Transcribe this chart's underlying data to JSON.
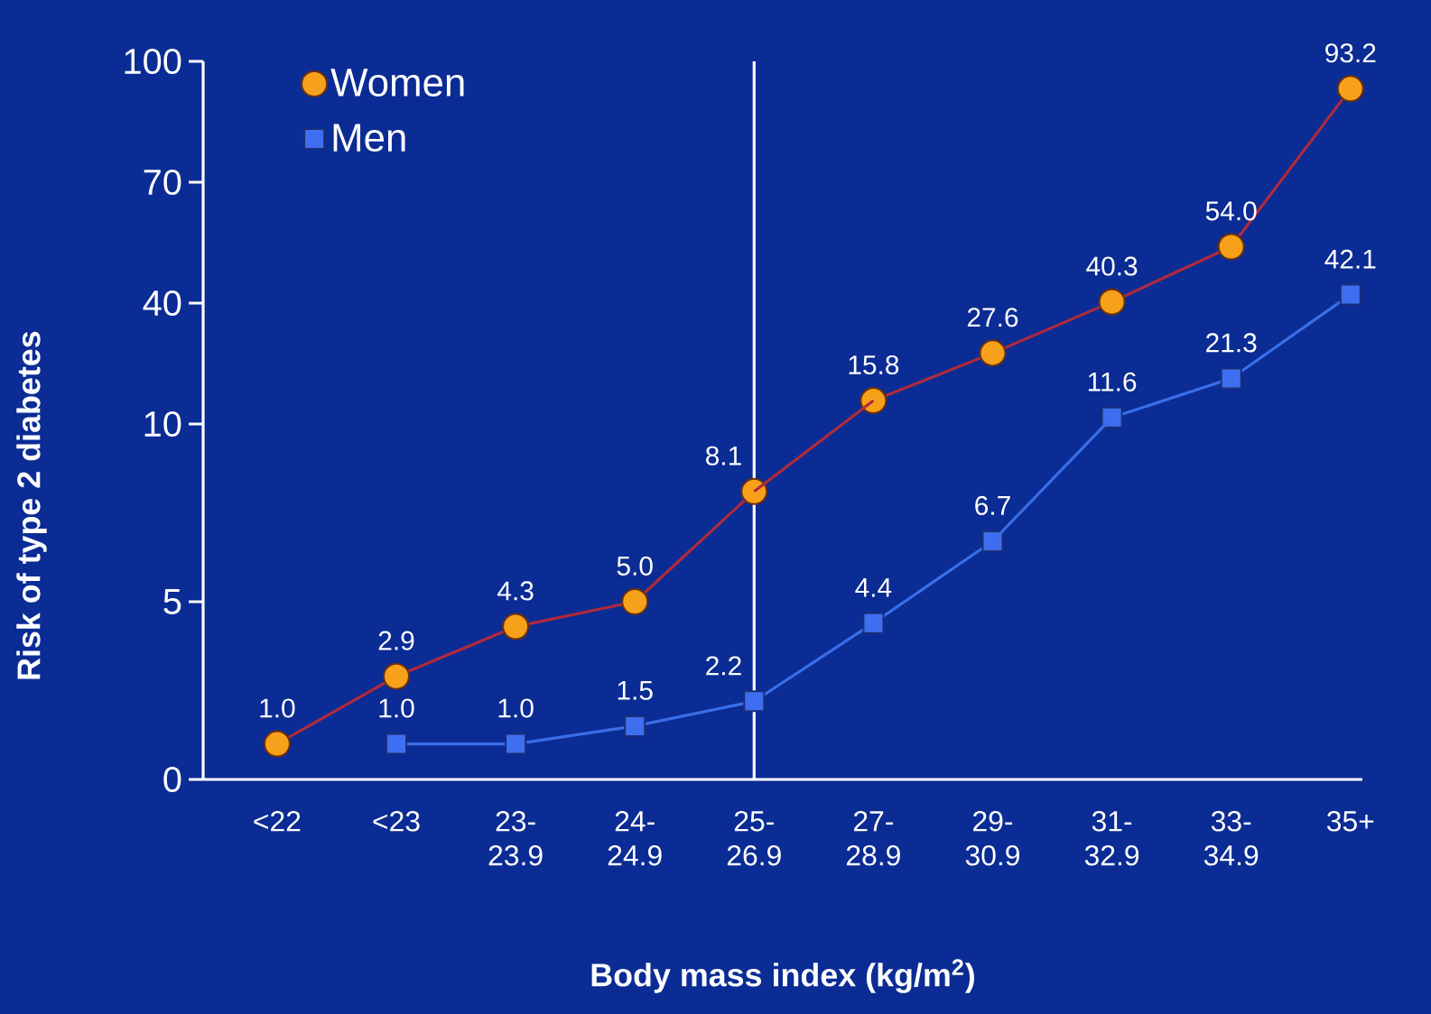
{
  "chart_data": [
    {
      "type": "line",
      "categories": [
        "<22",
        "<23",
        "23-23.9",
        "24-24.9",
        "25-26.9",
        "27-28.9",
        "29-30.9",
        "31-32.9",
        "33-34.9",
        "35+"
      ],
      "series": [
        {
          "name": "Women",
          "color": "#f7a11a",
          "marker": "circle",
          "values": [
            null,
            null,
            null,
            null,
            null,
            15.8,
            27.6,
            40.3,
            54.0,
            93.2
          ],
          "value_labels": [
            null,
            null,
            null,
            null,
            null,
            "15.8",
            "27.6",
            "40.3",
            "54.0",
            "93.2"
          ]
        },
        {
          "name": "Men",
          "color": "#3f6ff0",
          "marker": "square",
          "values": [
            null,
            null,
            null,
            null,
            null,
            null,
            null,
            11.6,
            21.3,
            42.1
          ],
          "value_labels": [
            null,
            null,
            null,
            null,
            null,
            null,
            null,
            "11.6",
            "21.3",
            "42.1"
          ]
        }
      ],
      "ylim": [
        10,
        100
      ],
      "yticks": [
        40,
        70,
        100
      ],
      "tick_labels": "y",
      "ref_lines": [
        {
          "axis": "x",
          "value": "25-26.9",
          "color": "#ffffff"
        }
      ],
      "legend": "top left",
      "grid": false
    },
    {
      "type": "line",
      "xlabel": "Body mass index (kg/m$^{2}$)",
      "ylabel": "Risk of type 2 diabetes",
      "categories": [
        "<22",
        "<23",
        "23-23.9",
        "24-24.9",
        "25-26.9",
        "27-28.9",
        "29-30.9",
        "31-32.9",
        "33-34.9",
        "35+"
      ],
      "series": [
        {
          "color": "#f7a11a",
          "marker": "circle",
          "values": [
            1.0,
            2.9,
            4.3,
            5.0,
            8.1,
            null,
            null,
            null,
            null,
            null
          ],
          "value_labels": [
            "1.0",
            "2.9",
            "4.3",
            "5.0",
            "8.1",
            null,
            null,
            null,
            null,
            null
          ]
        },
        {
          "color": "#3f6ff0",
          "marker": "square",
          "values": [
            null,
            1.0,
            1.0,
            1.5,
            2.2,
            4.4,
            6.7,
            null,
            null,
            null
          ],
          "value_labels": [
            null,
            "1.0",
            "1.0",
            "1.5",
            "2.2",
            "4.4",
            "6.7",
            null,
            null,
            null
          ]
        }
      ],
      "ylim": [
        0,
        10
      ],
      "yticks": [
        0,
        5,
        10
      ],
      "ref_lines": [
        {
          "axis": "x",
          "value": "25-26.9",
          "color": "#ffffff"
        }
      ],
      "grid": false
    }
  ]
}
